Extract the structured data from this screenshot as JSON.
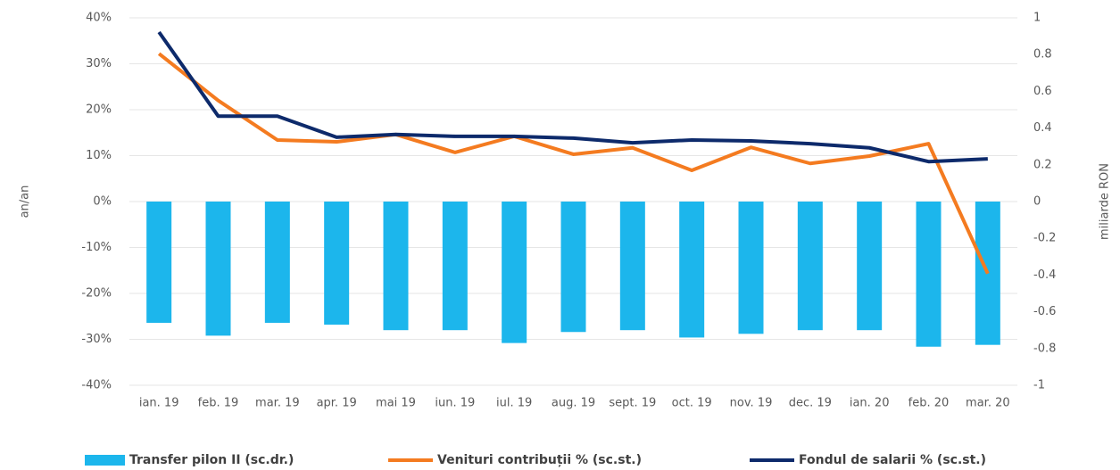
{
  "chart_data": {
    "type": "bar-line",
    "y_label": "an/an",
    "y2_label": "miliarde RON",
    "categories": [
      "ian. 19",
      "feb. 19",
      "mar. 19",
      "apr. 19",
      "mai 19",
      "iun. 19",
      "iul. 19",
      "aug. 19",
      "sept. 19",
      "oct. 19",
      "nov. 19",
      "dec. 19",
      "ian. 20",
      "feb. 20",
      "mar. 20"
    ],
    "ylim": [
      -40,
      40
    ],
    "yticks": [
      {
        "value": 40,
        "label": "40%"
      },
      {
        "value": 30,
        "label": "30%"
      },
      {
        "value": 20,
        "label": "20%"
      },
      {
        "value": 10,
        "label": "10%"
      },
      {
        "value": 0,
        "label": "0%"
      },
      {
        "value": -10,
        "label": "-10%"
      },
      {
        "value": -20,
        "label": "-20%"
      },
      {
        "value": -30,
        "label": "-30%"
      },
      {
        "value": -40,
        "label": "-40%"
      }
    ],
    "y2lim": [
      -1,
      1
    ],
    "y2ticks": [
      1,
      0.8,
      0.6,
      0.4,
      0.2,
      0,
      -0.2,
      -0.4,
      -0.6,
      -0.8,
      -1
    ],
    "grid": true,
    "legend": "bottom",
    "series": [
      {
        "name": "Transfer pilon II (sc.dr.)",
        "type": "bar",
        "axis": "y2",
        "color": "#1cb6ec",
        "values": [
          -0.66,
          -0.73,
          -0.66,
          -0.67,
          -0.7,
          -0.7,
          -0.77,
          -0.71,
          -0.7,
          -0.74,
          -0.72,
          -0.7,
          -0.7,
          -0.79,
          -0.78
        ]
      },
      {
        "name": "Venituri contribuții % (sc.st.)",
        "type": "line",
        "color": "#f47b20",
        "values": [
          32.2,
          22,
          13.4,
          13,
          14.6,
          10.7,
          14.2,
          10.3,
          11.7,
          6.8,
          11.8,
          8.3,
          9.9,
          12.6,
          -15.7
        ]
      },
      {
        "name": "Fondul de salarii % (sc.st.)",
        "type": "line",
        "color": "#0d2a6b",
        "values": [
          36.9,
          18.6,
          18.6,
          14,
          14.6,
          14.2,
          14.2,
          13.8,
          12.8,
          13.4,
          13.2,
          12.6,
          11.7,
          8.7,
          9.3
        ]
      }
    ]
  }
}
